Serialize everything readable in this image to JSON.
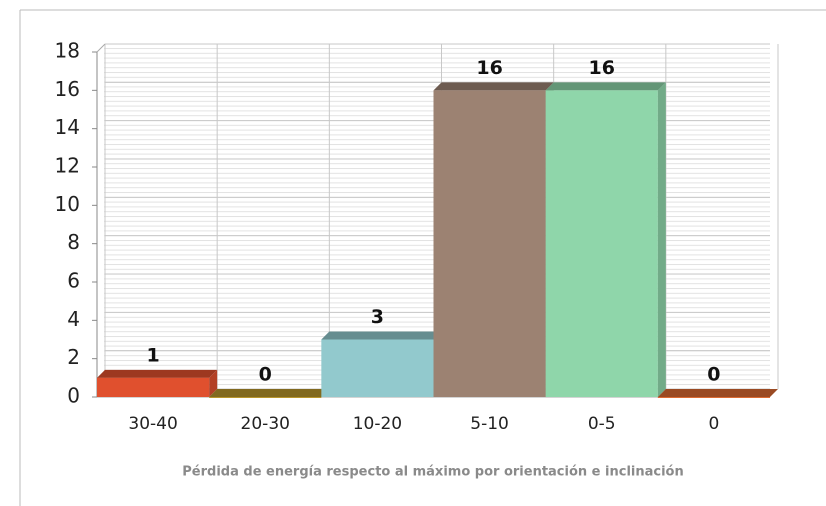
{
  "chart_data": {
    "type": "bar",
    "xlabel": "Pérdida de energía respecto al máximo por orientación e inclinación",
    "categories": [
      "30-40",
      "20-30",
      "10-20",
      "5-10",
      "0-5",
      "0"
    ],
    "values": [
      1,
      0,
      3,
      16,
      16,
      0
    ],
    "colors": [
      "#e0502e",
      "#b8962c",
      "#92c9cd",
      "#9c8272",
      "#8fd6aa",
      "#dc6a32"
    ],
    "ylim": [
      0,
      18
    ],
    "yticks": [
      0,
      2,
      4,
      6,
      8,
      10,
      12,
      14,
      16,
      18
    ],
    "grid": true
  }
}
